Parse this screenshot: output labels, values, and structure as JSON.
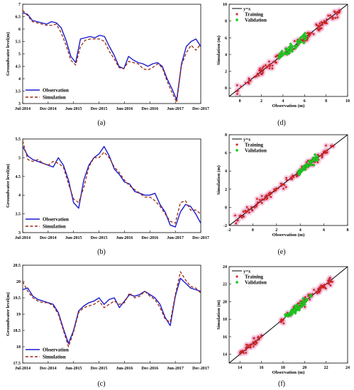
{
  "chart_data": [
    {
      "id": "a",
      "type": "line",
      "caption": "(a)",
      "xlabel": "",
      "ylabel": "Groundwater level(m)",
      "x_ticks": [
        "Jul-2014",
        "Dec-2014",
        "Jun-2015",
        "Dec-2015",
        "Jun-2016",
        "Dec-2016",
        "Jun-2017",
        "Dec-2017"
      ],
      "ylim": [
        3,
        7
      ],
      "y_ticks": [
        3,
        3.5,
        4,
        4.5,
        5,
        5.5,
        6,
        6.5,
        7
      ],
      "grid": false,
      "legend_position": "bottom-left",
      "series": [
        {
          "name": "Observation",
          "color": "#1a1acc",
          "dash": "solid",
          "values": [
            6.65,
            6.6,
            6.35,
            6.3,
            6.25,
            6.2,
            6.3,
            6.25,
            6.05,
            5.55,
            4.9,
            4.65,
            5.6,
            5.65,
            5.7,
            5.65,
            5.75,
            5.7,
            5.3,
            4.95,
            4.5,
            4.4,
            4.9,
            4.75,
            4.65,
            4.6,
            4.5,
            4.6,
            4.65,
            4.5,
            4.0,
            3.6,
            3.15,
            4.6,
            5.3,
            5.5,
            5.6,
            5.3
          ]
        },
        {
          "name": "Simulation",
          "color": "#9a2a12",
          "dash": "dashed",
          "values": [
            6.75,
            6.55,
            6.3,
            6.25,
            6.2,
            6.15,
            6.15,
            6.2,
            5.85,
            5.35,
            4.75,
            4.55,
            5.3,
            5.55,
            5.6,
            5.6,
            5.6,
            5.5,
            5.1,
            4.8,
            4.45,
            4.4,
            4.7,
            4.65,
            4.6,
            4.4,
            4.35,
            4.45,
            4.6,
            4.45,
            3.9,
            3.45,
            3.05,
            4.55,
            5.05,
            5.35,
            5.15,
            5.4
          ]
        }
      ]
    },
    {
      "id": "b",
      "type": "line",
      "caption": "(b)",
      "xlabel": "",
      "ylabel": "Groundwater level(m)",
      "x_ticks": [
        "Jul-2014",
        "Dec-2014",
        "Jun-2015",
        "Dec-2015",
        "Jun-2016",
        "Dec-2016",
        "Jun-2017",
        "Dec-2017"
      ],
      "ylim": [
        3,
        5.5
      ],
      "y_ticks": [
        3,
        3.5,
        4,
        4.5,
        5,
        5.5
      ],
      "grid": false,
      "legend_position": "bottom-left",
      "series": [
        {
          "name": "Observation",
          "color": "#1a1acc",
          "dash": "solid",
          "values": [
            5.3,
            5.05,
            4.95,
            4.9,
            4.85,
            4.8,
            4.75,
            5.0,
            4.8,
            4.4,
            3.8,
            3.65,
            4.4,
            4.8,
            5.0,
            5.1,
            5.3,
            5.05,
            4.7,
            4.55,
            4.35,
            4.3,
            4.1,
            4.05,
            4.0,
            4.0,
            4.05,
            3.75,
            3.55,
            3.2,
            3.15,
            3.55,
            3.75,
            3.7,
            3.5,
            3.25
          ]
        },
        {
          "name": "Simulation",
          "color": "#9a2a12",
          "dash": "dashed",
          "values": [
            5.45,
            4.95,
            4.9,
            4.95,
            4.85,
            4.8,
            4.9,
            4.85,
            4.75,
            4.3,
            3.9,
            3.8,
            4.2,
            4.75,
            5.0,
            5.0,
            5.15,
            5.0,
            4.75,
            4.6,
            4.4,
            4.25,
            4.15,
            4.05,
            3.95,
            3.95,
            3.85,
            3.7,
            3.5,
            3.3,
            3.25,
            3.8,
            3.85,
            3.6,
            3.6,
            3.5
          ]
        }
      ]
    },
    {
      "id": "c",
      "type": "line",
      "caption": "(c)",
      "xlabel": "",
      "ylabel": "Groundwater level(m)",
      "x_ticks": [
        "Jul-2014",
        "Dec-2014",
        "Jun-2015",
        "Dec-2015",
        "Jun-2016",
        "Dec-2016",
        "Jun-2017",
        "Dec-2017"
      ],
      "ylim": [
        17.5,
        20.5
      ],
      "y_ticks": [
        17.5,
        18,
        18.5,
        19,
        19.5,
        20,
        20.5
      ],
      "grid": false,
      "legend_position": "bottom-left",
      "series": [
        {
          "name": "Observation",
          "color": "#1a1acc",
          "dash": "solid",
          "values": [
            19.75,
            19.8,
            19.55,
            19.45,
            19.4,
            19.35,
            19.3,
            19.05,
            18.55,
            18.1,
            18.5,
            19.1,
            19.25,
            19.35,
            19.4,
            19.5,
            19.3,
            19.45,
            19.5,
            19.2,
            19.4,
            19.6,
            19.55,
            19.6,
            19.7,
            19.6,
            19.5,
            19.3,
            18.9,
            18.65,
            19.55,
            20.1,
            19.95,
            19.8,
            19.75,
            19.7
          ]
        },
        {
          "name": "Simulation",
          "color": "#9a2a12",
          "dash": "dashed",
          "values": [
            20.0,
            19.7,
            19.5,
            19.4,
            19.35,
            19.35,
            19.25,
            19.0,
            18.5,
            18.0,
            18.45,
            19.05,
            19.2,
            19.25,
            19.3,
            19.4,
            19.2,
            19.3,
            19.4,
            19.3,
            19.35,
            19.65,
            19.5,
            19.55,
            19.7,
            19.55,
            19.45,
            19.2,
            18.85,
            18.75,
            19.6,
            20.3,
            20.05,
            19.85,
            19.8,
            19.65
          ]
        }
      ]
    },
    {
      "id": "d",
      "type": "scatter",
      "caption": "(d)",
      "xlabel": "Observation (m)",
      "ylabel": "Simulation (m)",
      "xlim": [
        -1,
        10
      ],
      "ylim": [
        -1,
        10
      ],
      "x_ticks": [
        0,
        2,
        4,
        6,
        8,
        10
      ],
      "y_ticks": [
        0,
        2,
        4,
        6,
        8,
        10
      ],
      "grid": false,
      "legend_position": "top-left",
      "legend": [
        "y=x",
        "Training",
        "Validation"
      ],
      "line": {
        "name": "y=x",
        "color": "#000000"
      },
      "series": [
        {
          "name": "Training",
          "color": "#cc2222",
          "marker": "star",
          "ranges": [
            [
              -0.3,
              9.3
            ]
          ],
          "count": 110,
          "spread": 0.28
        },
        {
          "name": "Validation",
          "color": "#22cc22",
          "marker": "diamond",
          "ranges": [
            [
              3.6,
              6.2
            ]
          ],
          "count": 55,
          "spread": 0.25
        }
      ]
    },
    {
      "id": "e",
      "type": "scatter",
      "caption": "(e)",
      "xlabel": "Observation (m)",
      "ylabel": "Simulation (m)",
      "xlim": [
        -2,
        8
      ],
      "ylim": [
        -2,
        8
      ],
      "x_ticks": [
        -2,
        0,
        2,
        4,
        6,
        8
      ],
      "y_ticks": [
        -2,
        0,
        2,
        4,
        6,
        8
      ],
      "grid": false,
      "legend_position": "top-left",
      "legend": [
        "y=x",
        "Training",
        "Validation"
      ],
      "line": {
        "name": "y=x",
        "color": "#000000"
      },
      "series": [
        {
          "name": "Training",
          "color": "#cc2222",
          "marker": "star",
          "ranges": [
            [
              -1.5,
              6.8
            ]
          ],
          "count": 110,
          "spread": 0.22
        },
        {
          "name": "Validation",
          "color": "#22cc22",
          "marker": "diamond",
          "ranges": [
            [
              3.8,
              5.5
            ]
          ],
          "count": 50,
          "spread": 0.2
        }
      ]
    },
    {
      "id": "f",
      "type": "scatter",
      "caption": "(f)",
      "xlabel": "Observation (m)",
      "ylabel": "Simulation (m)",
      "xlim": [
        13,
        24
      ],
      "ylim": [
        13,
        24
      ],
      "x_ticks": [
        14,
        16,
        18,
        20,
        22,
        24
      ],
      "y_ticks": [
        14,
        16,
        18,
        20,
        22,
        24
      ],
      "grid": false,
      "legend_position": "top-left",
      "legend": [
        "y=x",
        "Training",
        "Validation"
      ],
      "line": {
        "name": "y=x",
        "color": "#000000"
      },
      "series": [
        {
          "name": "Training",
          "color": "#cc2222",
          "marker": "star",
          "ranges": [
            [
              14.0,
              16.0
            ],
            [
              17.8,
              22.8
            ]
          ],
          "count": 110,
          "spread": 0.22
        },
        {
          "name": "Validation",
          "color": "#22cc22",
          "marker": "diamond",
          "ranges": [
            [
              18.2,
              20.6
            ]
          ],
          "count": 60,
          "spread": 0.25
        }
      ]
    }
  ]
}
